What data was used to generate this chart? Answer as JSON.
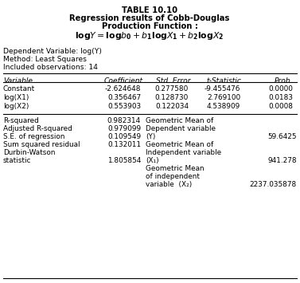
{
  "title_line1": "TABLE 10.10",
  "title_line2": "Regression results of Cobb-Douglas",
  "title_line3": "Production Function :",
  "formula": "$\\mathbf{log}\\mathit{Y} = \\mathbf{log}\\mathit{b}_\\mathbf{0} + \\mathit{b}_\\mathbf{1}\\mathbf{log}\\mathit{X}_\\mathbf{1} + \\mathit{b}_\\mathbf{2}\\mathbf{log}\\mathit{X}_\\mathbf{2}$",
  "meta_lines": [
    "Dependent Variable: log(Y)",
    "Method: Least Squares",
    "Included observations: 14"
  ],
  "col_headers": [
    "Variable",
    "Coefficient",
    "Std. Error",
    "t-Statistic",
    "Prob."
  ],
  "reg_rows": [
    [
      "Constant",
      "-2.624648",
      "0.277580",
      "-9.455476",
      "0.0000"
    ],
    [
      "log(X1)",
      "0.356467",
      "0.128730",
      "2.769100",
      "0.0183"
    ],
    [
      "log(X2)",
      "0.553903",
      "0.122034",
      "4.538909",
      "0.0008"
    ]
  ],
  "stats_left": [
    [
      "R-squared",
      "0.982314"
    ],
    [
      "Adjusted R-squared",
      "0.979099"
    ],
    [
      "S.E. of regression",
      "0.109549"
    ],
    [
      "Sum squared residual",
      "0.132011"
    ],
    [
      "Durbin-Watson",
      ""
    ],
    [
      "statistic",
      "1.805854"
    ]
  ],
  "stats_right": [
    [
      "Geometric Mean of",
      ""
    ],
    [
      "Dependent variable",
      ""
    ],
    [
      "(Y)",
      "59.6425"
    ],
    [
      "Geometric Mean of",
      ""
    ],
    [
      "Independent variable",
      ""
    ],
    [
      "(X₁)",
      "941.278"
    ],
    [
      "Geometric Mean",
      ""
    ],
    [
      "of independent",
      ""
    ],
    [
      "variable  (X₂)",
      "2237.035878"
    ]
  ],
  "bg_color": "#ffffff",
  "text_color": "#000000"
}
